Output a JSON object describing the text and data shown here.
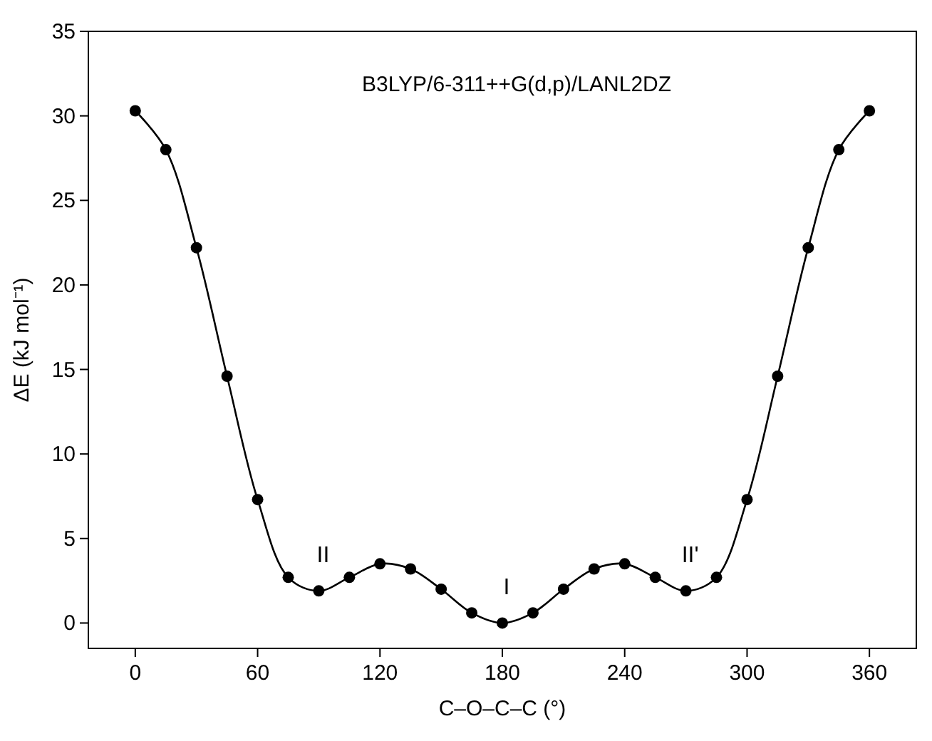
{
  "chart_data": {
    "type": "line",
    "xlabel": "C–O–C–C (°)",
    "ylabel": "ΔE (kJ mol⁻¹)",
    "x": [
      0,
      15,
      30,
      45,
      60,
      75,
      90,
      105,
      120,
      135,
      150,
      165,
      180,
      195,
      210,
      225,
      240,
      255,
      270,
      285,
      300,
      315,
      330,
      345,
      360
    ],
    "series": [
      {
        "color": "#000000",
        "values": [
          30.3,
          28.0,
          22.2,
          14.6,
          7.3,
          2.7,
          1.9,
          2.7,
          3.5,
          3.2,
          2.0,
          0.6,
          0.0,
          0.6,
          2.0,
          3.2,
          3.5,
          2.7,
          1.9,
          2.7,
          7.3,
          14.6,
          22.2,
          28.0,
          30.3
        ]
      }
    ],
    "xlim": [
      -23,
      383
    ],
    "xticks": [
      0,
      60,
      120,
      180,
      240,
      300,
      360
    ],
    "ylim": [
      -1.5,
      35
    ],
    "yticks": [
      0,
      5,
      10,
      15,
      20,
      25,
      30,
      35
    ],
    "marker": "circle",
    "line_style": "solid",
    "grid": false,
    "annotations": [
      "B3LYP/6-311++G(d,p)/LANL2DZ",
      {
        "text": "II",
        "x": 90,
        "y": 1.9
      },
      {
        "text": "I",
        "x": 180,
        "y": 0
      },
      {
        "text": "II'",
        "x": 270,
        "y": 1.9
      }
    ]
  }
}
